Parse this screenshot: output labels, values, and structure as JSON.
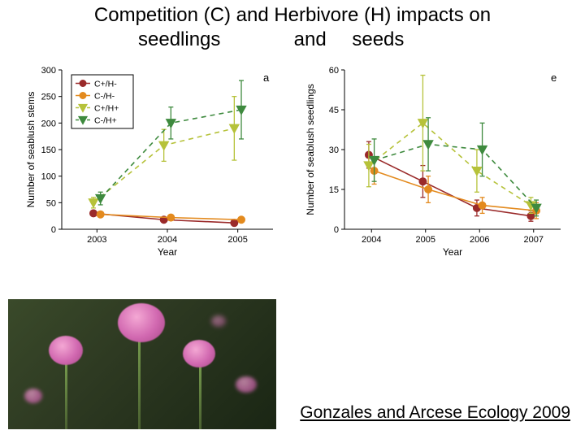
{
  "title_line1": "Competition (C) and Herbivore (H) impacts on",
  "title_line2_a": "seedlings",
  "title_line2_b": "and",
  "title_line2_c": "seeds",
  "citation": "Gonzales and Arcese Ecology 2009",
  "colors": {
    "dark_red": "#9a2a2a",
    "orange": "#e38a1e",
    "yellow_green": "#b6c23a",
    "green": "#3e8a3e",
    "axis": "#000000",
    "grid_bg": "#ffffff"
  },
  "chart_a": {
    "panel_letter": "a",
    "ylabel": "Number of seablush stems",
    "xlabel": "Year",
    "ylim": [
      0,
      300
    ],
    "yticks": [
      0,
      50,
      100,
      150,
      200,
      250,
      300
    ],
    "xticks": [
      "2003",
      "2004",
      "2005"
    ],
    "legend": [
      {
        "label": "C+/H-",
        "color": "#9a2a2a",
        "marker": "circle",
        "dash": false
      },
      {
        "label": "C-/H-",
        "color": "#e38a1e",
        "marker": "circle",
        "dash": false
      },
      {
        "label": "C+/H+",
        "color": "#b6c23a",
        "marker": "triangle-down",
        "dash": true
      },
      {
        "label": "C-/H+",
        "color": "#3e8a3e",
        "marker": "triangle-down",
        "dash": true
      }
    ],
    "series": [
      {
        "color": "#9a2a2a",
        "marker": "circle",
        "dash": false,
        "dx": -0.05,
        "y": [
          30,
          18,
          12
        ],
        "err": [
          5,
          4,
          3
        ]
      },
      {
        "color": "#e38a1e",
        "marker": "circle",
        "dash": false,
        "dx": 0.05,
        "y": [
          28,
          22,
          18
        ],
        "err": [
          5,
          5,
          4
        ]
      },
      {
        "color": "#b6c23a",
        "marker": "triangle-down",
        "dash": true,
        "dx": -0.05,
        "y": [
          50,
          158,
          190
        ],
        "err": [
          10,
          30,
          60
        ]
      },
      {
        "color": "#3e8a3e",
        "marker": "triangle-down",
        "dash": true,
        "dx": 0.05,
        "y": [
          58,
          200,
          225
        ],
        "err": [
          12,
          30,
          55
        ]
      }
    ]
  },
  "chart_e": {
    "panel_letter": "e",
    "ylabel": "Number of seablush seedlings",
    "xlabel": "Year",
    "ylim": [
      0,
      60
    ],
    "yticks": [
      0,
      15,
      30,
      45,
      60
    ],
    "xticks": [
      "2004",
      "2005",
      "2006",
      "2007"
    ],
    "series": [
      {
        "color": "#9a2a2a",
        "marker": "circle",
        "dash": false,
        "dx": -0.05,
        "y": [
          28,
          18,
          8,
          5
        ],
        "err": [
          5,
          6,
          3,
          2
        ]
      },
      {
        "color": "#e38a1e",
        "marker": "circle",
        "dash": false,
        "dx": 0.05,
        "y": [
          22,
          15,
          9,
          7
        ],
        "err": [
          5,
          5,
          3,
          3
        ]
      },
      {
        "color": "#b6c23a",
        "marker": "triangle-down",
        "dash": true,
        "dx": -0.05,
        "y": [
          24,
          40,
          22,
          9
        ],
        "err": [
          8,
          18,
          8,
          3
        ]
      },
      {
        "color": "#3e8a3e",
        "marker": "triangle-down",
        "dash": true,
        "dx": 0.05,
        "y": [
          26,
          32,
          30,
          8
        ],
        "err": [
          8,
          10,
          10,
          3
        ]
      }
    ]
  },
  "axis_font_size": 11,
  "label_font_size": 12
}
